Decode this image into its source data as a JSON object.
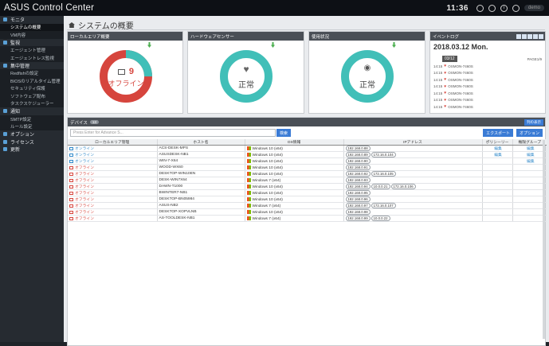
{
  "app": {
    "title": "ASUS Control Center",
    "clock": "11:36",
    "user": "demo"
  },
  "sidebar": {
    "groups": [
      {
        "label": "モニタ",
        "items": [
          "システムの概要",
          "VM内容"
        ]
      },
      {
        "label": "監視",
        "items": [
          "エージェント管理",
          "エージェントレス監視"
        ]
      },
      {
        "label": "集中管理",
        "items": [
          "Redfishの設定",
          "BIOSのリアルタイム管理",
          "セキュリティ保護",
          "ソフトウェア配布",
          "タスクスケジューラー"
        ]
      },
      {
        "label": "通知",
        "items": [
          "SMTP設定",
          "ルール設定"
        ]
      },
      {
        "label": "オプション",
        "items": []
      },
      {
        "label": "ライセンス",
        "items": []
      },
      {
        "label": "更新",
        "items": []
      }
    ]
  },
  "page": {
    "title": "システムの概要"
  },
  "panels": {
    "local": {
      "title": "ローカルエリア概要",
      "count": "9",
      "status": "オフライン"
    },
    "hardware": {
      "title": "ハードウェアセンサー",
      "status": "正常"
    },
    "usage": {
      "title": "使用状況",
      "status": "正常"
    },
    "events": {
      "title": "イベントログ",
      "date": "2018.03.12 Mon.",
      "tag": "03/12",
      "meta": "PAGE1/9",
      "rows": [
        {
          "time": "14:15",
          "text": "OSMON-7460S"
        },
        {
          "time": "14:15",
          "text": "OSMON-7460S"
        },
        {
          "time": "14:15",
          "text": "OSMON-7460S"
        },
        {
          "time": "14:15",
          "text": "OSMON-7460S"
        },
        {
          "time": "14:15",
          "text": "OSMON-7460S"
        },
        {
          "time": "14:15",
          "text": "OSMON-7460S"
        },
        {
          "time": "14:15",
          "text": "OSMON-7460S"
        }
      ]
    }
  },
  "devices": {
    "title": "デバイス",
    "count": "13",
    "columns_button": "列の表示",
    "search_placeholder": "Press Enter for Advance S...",
    "search_button": "検索",
    "export_button": "エクスポート",
    "option_button": "オプション",
    "headers": [
      "ローカルエリア管理",
      "ホスト名",
      "OS情報",
      "IPアドレス",
      "ポリシーリー",
      "権限グループ"
    ],
    "rows": [
      {
        "status": "オンライン",
        "state": "on",
        "host": "ACS-DESK-MPS",
        "os": "Windows 10 (x64)",
        "ips": [
          "192.168.0.88"
        ],
        "policy": "編集",
        "group": "編集"
      },
      {
        "status": "オンライン",
        "state": "on",
        "host": "ASUSDESK-NB1",
        "os": "Windows 10 (x64)",
        "ips": [
          "192.168.0.89",
          "172.16.0.104"
        ],
        "policy": "編集",
        "group": "編集"
      },
      {
        "status": "オンライン",
        "state": "on",
        "host": "WIN-7-X64",
        "os": "Windows 10 (x64)",
        "ips": [
          "192.168.0.90"
        ],
        "policy": "",
        "group": "編集"
      },
      {
        "status": "オフライン",
        "state": "off",
        "host": "WOOD-WX60",
        "os": "Windows 10 (x64)",
        "ips": [
          "192.168.0.91"
        ],
        "policy": "",
        "group": ""
      },
      {
        "status": "オフライン",
        "state": "off",
        "host": "DESKTOP-WIN10EN",
        "os": "Windows 10 (x64)",
        "ips": [
          "192.168.0.92",
          "172.16.0.105"
        ],
        "policy": "",
        "group": ""
      },
      {
        "status": "オフライン",
        "state": "off",
        "host": "DESK-WIN7X64",
        "os": "Windows 7 (x64)",
        "ips": [
          "192.168.0.93"
        ],
        "policy": "",
        "group": ""
      },
      {
        "status": "オフライン",
        "state": "off",
        "host": "DAWN-T1000",
        "os": "Windows 10 (x64)",
        "ips": [
          "192.168.0.94",
          "10.0.0.21",
          "172.16.0.106"
        ],
        "policy": "",
        "group": ""
      },
      {
        "status": "オフライン",
        "state": "off",
        "host": "BWINTER7-NB1",
        "os": "Windows 10 (x64)",
        "ips": [
          "192.168.0.95"
        ],
        "policy": "",
        "group": ""
      },
      {
        "status": "オフライン",
        "state": "off",
        "host": "DESKTOP-BN05984",
        "os": "Windows 10 (x64)",
        "ips": [
          "192.168.0.96"
        ],
        "policy": "",
        "group": ""
      },
      {
        "status": "オフライン",
        "state": "off",
        "host": "ASUS-NB2",
        "os": "Windows 7 (x64)",
        "ips": [
          "192.168.0.97",
          "172.16.0.107"
        ],
        "policy": "",
        "group": ""
      },
      {
        "status": "オフライン",
        "state": "off",
        "host": "DESKTOP-XOPVLNB",
        "os": "Windows 10 (x64)",
        "ips": [
          "192.168.0.98"
        ],
        "policy": "",
        "group": ""
      },
      {
        "status": "オフライン",
        "state": "off",
        "host": "AS-TOOLDESK-NB1",
        "os": "Windows 7 (x64)",
        "ips": [
          "192.168.0.99",
          "10.0.0.22"
        ],
        "policy": "",
        "group": ""
      }
    ]
  },
  "colors": {
    "online": "#2f88c9",
    "offline": "#d6453d",
    "teal": "#41bfb8",
    "header": "#4a4f56"
  }
}
